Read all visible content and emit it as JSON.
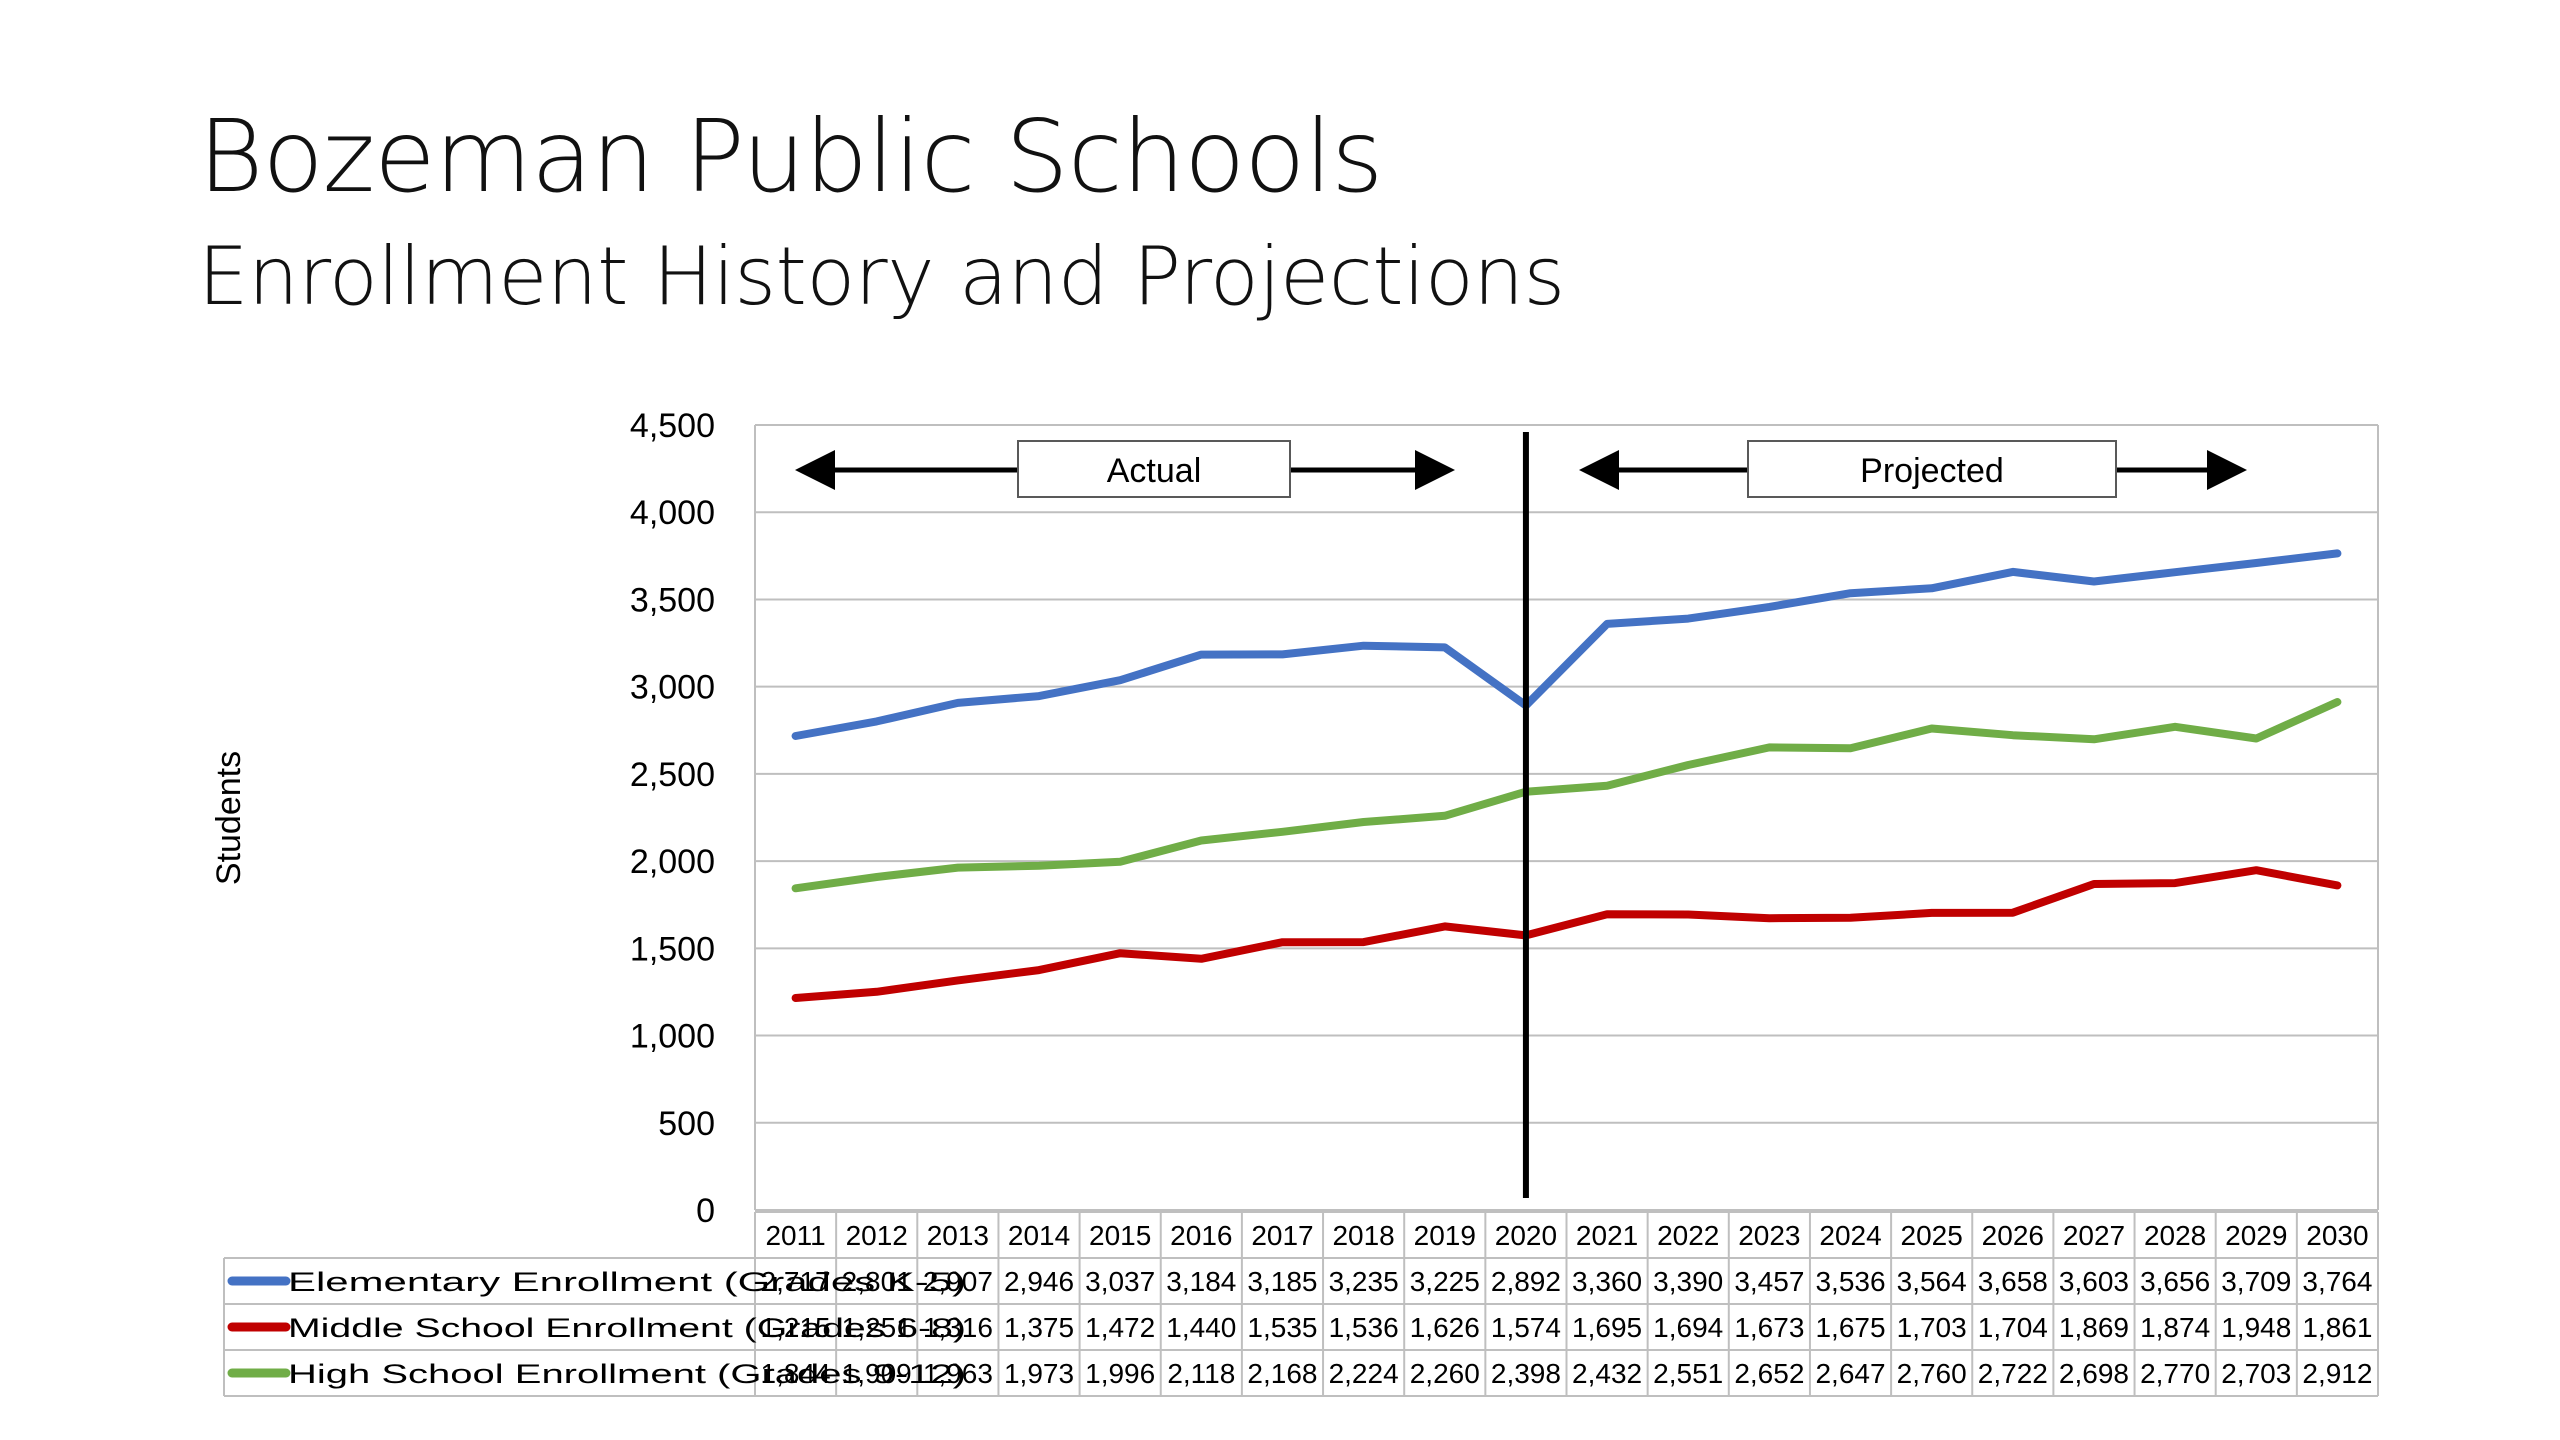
{
  "slide": {
    "title": "Bozeman Public Schools",
    "subtitle": "Enrollment History and Projections"
  },
  "chart_data": {
    "type": "line",
    "title": "",
    "xlabel": "",
    "ylabel": "Students",
    "ylim": [
      0,
      4500
    ],
    "yticks": [
      "0",
      "500",
      "1,000",
      "1,500",
      "2,000",
      "2,500",
      "3,000",
      "3,500",
      "4,000",
      "4,500"
    ],
    "ytick_values": [
      0,
      500,
      1000,
      1500,
      2000,
      2500,
      3000,
      3500,
      4000,
      4500
    ],
    "grid": true,
    "legend": "data-table",
    "categories": [
      "2011",
      "2012",
      "2013",
      "2014",
      "2015",
      "2016",
      "2017",
      "2018",
      "2019",
      "2020",
      "2021",
      "2022",
      "2023",
      "2024",
      "2025",
      "2026",
      "2027",
      "2028",
      "2029",
      "2030"
    ],
    "series": [
      {
        "name": "Elementary Enrollment (Grades K-5)",
        "color": "#4472C4",
        "values": [
          2717,
          2801,
          2907,
          2946,
          3037,
          3184,
          3185,
          3235,
          3225,
          2892,
          3360,
          3390,
          3457,
          3536,
          3564,
          3658,
          3603,
          3656,
          3709,
          3764
        ]
      },
      {
        "name": "Middle School Enrollment (Grades 6-8)",
        "color": "#C00000",
        "values": [
          1215,
          1251,
          1316,
          1375,
          1472,
          1440,
          1535,
          1536,
          1626,
          1574,
          1695,
          1694,
          1673,
          1675,
          1703,
          1704,
          1869,
          1874,
          1948,
          1861
        ]
      },
      {
        "name": "High School Enrollment (Grades 9-12)",
        "color": "#70AD47",
        "values": [
          1844,
          1909,
          1963,
          1973,
          1996,
          2118,
          2168,
          2224,
          2260,
          2398,
          2432,
          2551,
          2652,
          2647,
          2760,
          2722,
          2698,
          2770,
          2703,
          2912
        ]
      }
    ],
    "divider_after": "2020",
    "annotations": {
      "left": "Actual",
      "right": "Projected"
    }
  }
}
